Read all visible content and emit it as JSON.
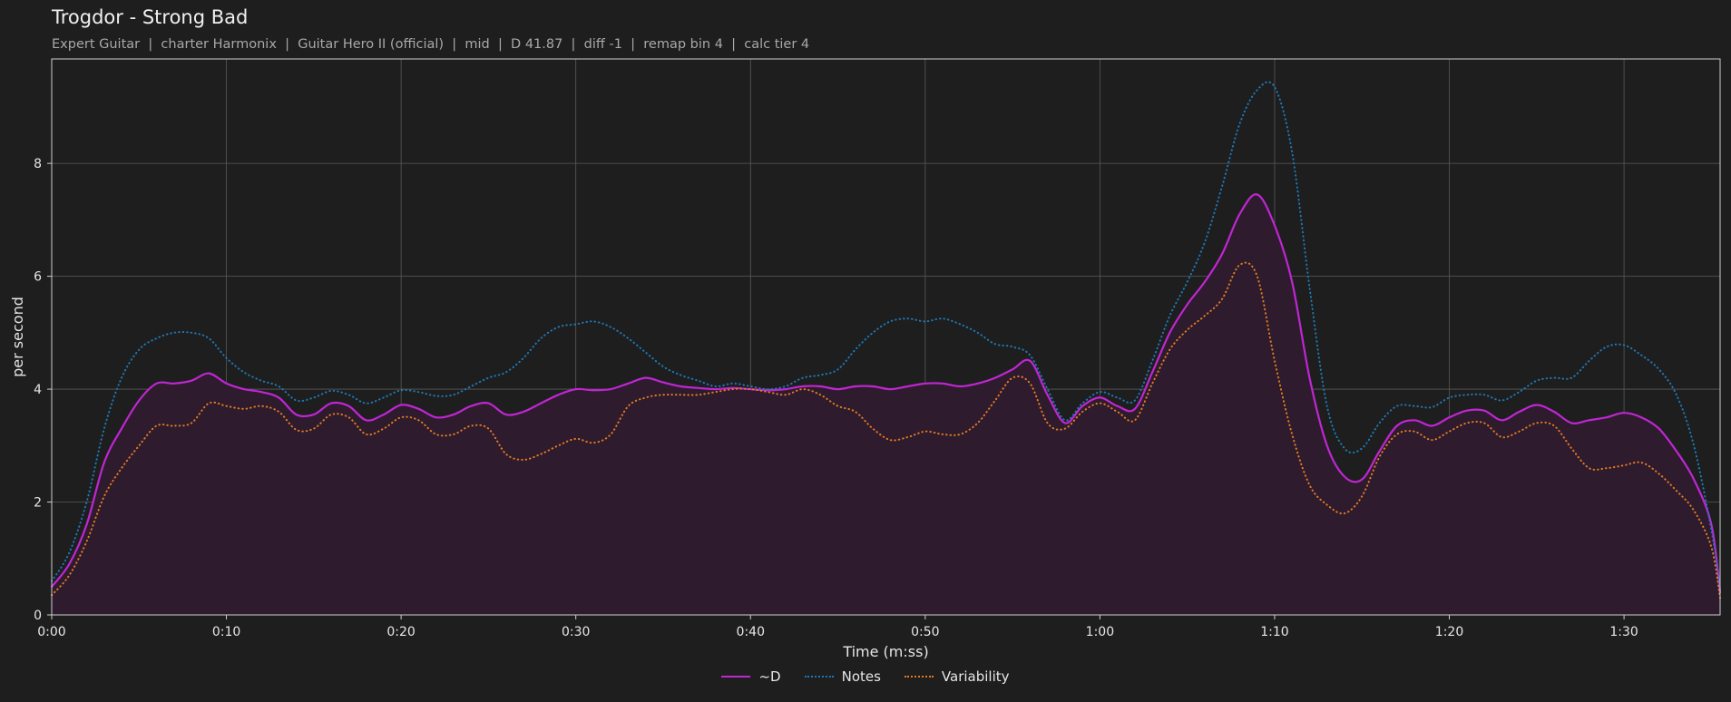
{
  "chart_data": {
    "type": "line",
    "title": "Trogdor - Strong Bad",
    "subtitle": "Expert Guitar  |  charter Harmonix  |  Guitar Hero II (official)  |  mid  |  D 41.87  |  diff -1  |  remap bin 4  |  calc tier 4",
    "xlabel": "Time (m:ss)",
    "ylabel": "per second",
    "xlim": [
      "0:00",
      "1:35.5"
    ],
    "ylim": [
      0,
      9.85
    ],
    "x_ticks": [
      "0:00",
      "0:10",
      "0:20",
      "0:30",
      "0:40",
      "0:50",
      "1:00",
      "1:10",
      "1:20",
      "1:30"
    ],
    "y_ticks": [
      0,
      2,
      4,
      6,
      8
    ],
    "grid": true,
    "legend_position": "bottom-center",
    "x_time": [
      "0:00",
      "0:01",
      "0:02",
      "0:03",
      "0:04",
      "0:05",
      "0:06",
      "0:07",
      "0:08",
      "0:09",
      "0:10",
      "0:11",
      "0:12",
      "0:13",
      "0:14",
      "0:15",
      "0:16",
      "0:17",
      "0:18",
      "0:19",
      "0:20",
      "0:21",
      "0:22",
      "0:23",
      "0:24",
      "0:25",
      "0:26",
      "0:27",
      "0:28",
      "0:29",
      "0:30",
      "0:31",
      "0:32",
      "0:33",
      "0:34",
      "0:35",
      "0:36",
      "0:37",
      "0:38",
      "0:39",
      "0:40",
      "0:41",
      "0:42",
      "0:43",
      "0:44",
      "0:45",
      "0:46",
      "0:47",
      "0:48",
      "0:49",
      "0:50",
      "0:51",
      "0:52",
      "0:53",
      "0:54",
      "0:55",
      "0:56",
      "0:57",
      "0:58",
      "0:59",
      "1:00",
      "1:01",
      "1:02",
      "1:03",
      "1:04",
      "1:05",
      "1:06",
      "1:07",
      "1:08",
      "1:09",
      "1:10",
      "1:11",
      "1:12",
      "1:13",
      "1:14",
      "1:15",
      "1:16",
      "1:17",
      "1:18",
      "1:19",
      "1:20",
      "1:21",
      "1:22",
      "1:23",
      "1:24",
      "1:25",
      "1:26",
      "1:27",
      "1:28",
      "1:29",
      "1:30",
      "1:31",
      "1:32",
      "1:33",
      "1:34",
      "1:35",
      "1:35.5"
    ],
    "x": [
      0,
      1,
      2,
      3,
      4,
      5,
      6,
      7,
      8,
      9,
      10,
      11,
      12,
      13,
      14,
      15,
      16,
      17,
      18,
      19,
      20,
      21,
      22,
      23,
      24,
      25,
      26,
      27,
      28,
      29,
      30,
      31,
      32,
      33,
      34,
      35,
      36,
      37,
      38,
      39,
      40,
      41,
      42,
      43,
      44,
      45,
      46,
      47,
      48,
      49,
      50,
      51,
      52,
      53,
      54,
      55,
      56,
      57,
      58,
      59,
      60,
      61,
      62,
      63,
      64,
      65,
      66,
      67,
      68,
      69,
      70,
      71,
      72,
      73,
      74,
      75,
      76,
      77,
      78,
      79,
      80,
      81,
      82,
      83,
      84,
      85,
      86,
      87,
      88,
      89,
      90,
      91,
      92,
      93,
      94,
      95,
      95.5
    ],
    "series": [
      {
        "name": "~D",
        "color": "#c026d3",
        "style": "solid",
        "fill": "#2e1b2e",
        "values": [
          0.5,
          0.9,
          1.6,
          2.7,
          3.3,
          3.8,
          4.1,
          4.1,
          4.15,
          4.28,
          4.1,
          4.0,
          3.95,
          3.85,
          3.55,
          3.55,
          3.75,
          3.7,
          3.45,
          3.55,
          3.72,
          3.65,
          3.5,
          3.55,
          3.7,
          3.75,
          3.55,
          3.6,
          3.75,
          3.9,
          4.0,
          3.98,
          4.0,
          4.1,
          4.2,
          4.12,
          4.05,
          4.02,
          4.0,
          4.02,
          4.0,
          3.98,
          4.0,
          4.05,
          4.05,
          4.0,
          4.05,
          4.05,
          4.0,
          4.05,
          4.1,
          4.1,
          4.05,
          4.1,
          4.2,
          4.35,
          4.5,
          3.9,
          3.4,
          3.7,
          3.85,
          3.7,
          3.65,
          4.3,
          5.0,
          5.5,
          5.9,
          6.4,
          7.1,
          7.45,
          6.9,
          5.9,
          4.2,
          3.0,
          2.45,
          2.4,
          2.9,
          3.35,
          3.45,
          3.35,
          3.5,
          3.62,
          3.62,
          3.45,
          3.6,
          3.72,
          3.6,
          3.4,
          3.45,
          3.5,
          3.58,
          3.5,
          3.3,
          2.9,
          2.4,
          1.6,
          0.4
        ]
      },
      {
        "name": "Notes",
        "color": "#1f77b4",
        "style": "dotted",
        "values": [
          0.6,
          1.1,
          2.0,
          3.3,
          4.2,
          4.7,
          4.9,
          5.0,
          5.0,
          4.9,
          4.55,
          4.3,
          4.15,
          4.05,
          3.8,
          3.85,
          3.97,
          3.9,
          3.75,
          3.85,
          3.98,
          3.95,
          3.88,
          3.9,
          4.05,
          4.2,
          4.3,
          4.55,
          4.9,
          5.1,
          5.15,
          5.2,
          5.1,
          4.9,
          4.65,
          4.4,
          4.25,
          4.15,
          4.05,
          4.1,
          4.05,
          4.0,
          4.05,
          4.2,
          4.25,
          4.35,
          4.7,
          5.0,
          5.2,
          5.25,
          5.2,
          5.25,
          5.15,
          5.0,
          4.8,
          4.75,
          4.6,
          4.0,
          3.45,
          3.75,
          3.95,
          3.85,
          3.8,
          4.5,
          5.3,
          5.9,
          6.6,
          7.6,
          8.7,
          9.3,
          9.35,
          8.2,
          5.8,
          3.7,
          2.95,
          2.95,
          3.4,
          3.7,
          3.7,
          3.68,
          3.85,
          3.9,
          3.9,
          3.8,
          3.95,
          4.15,
          4.2,
          4.2,
          4.5,
          4.75,
          4.78,
          4.6,
          4.35,
          3.9,
          3.0,
          1.5,
          0.45
        ]
      },
      {
        "name": "Variability",
        "color": "#e07b20",
        "style": "dotted",
        "values": [
          0.35,
          0.7,
          1.3,
          2.1,
          2.6,
          3.0,
          3.35,
          3.35,
          3.4,
          3.75,
          3.7,
          3.65,
          3.7,
          3.6,
          3.28,
          3.3,
          3.55,
          3.5,
          3.2,
          3.3,
          3.5,
          3.45,
          3.2,
          3.2,
          3.35,
          3.3,
          2.85,
          2.75,
          2.85,
          3.0,
          3.12,
          3.05,
          3.2,
          3.7,
          3.85,
          3.9,
          3.9,
          3.9,
          3.95,
          4.0,
          4.0,
          3.95,
          3.9,
          4.0,
          3.9,
          3.7,
          3.6,
          3.3,
          3.1,
          3.15,
          3.25,
          3.2,
          3.2,
          3.4,
          3.8,
          4.2,
          4.1,
          3.4,
          3.3,
          3.6,
          3.75,
          3.6,
          3.45,
          4.1,
          4.7,
          5.05,
          5.3,
          5.6,
          6.2,
          6.0,
          4.5,
          3.2,
          2.3,
          1.95,
          1.8,
          2.1,
          2.8,
          3.2,
          3.25,
          3.1,
          3.25,
          3.4,
          3.4,
          3.15,
          3.25,
          3.4,
          3.35,
          2.95,
          2.6,
          2.6,
          2.65,
          2.7,
          2.5,
          2.2,
          1.85,
          1.2,
          0.3
        ]
      }
    ]
  }
}
